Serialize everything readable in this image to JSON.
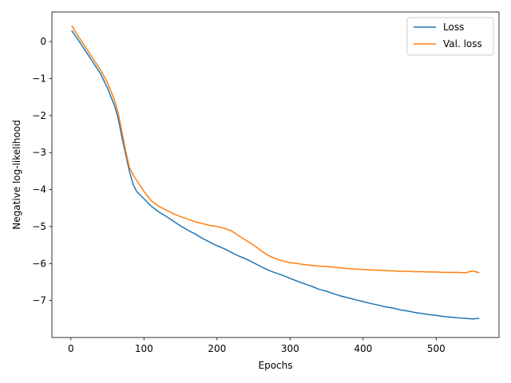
{
  "chart_data": {
    "type": "line",
    "title": "",
    "xlabel": "Epochs",
    "ylabel": "Negative log-likelihood",
    "xlim": [
      -26,
      586
    ],
    "ylim": [
      -8.0,
      0.8
    ],
    "xticks": [
      0,
      100,
      200,
      300,
      400,
      500
    ],
    "yticks": [
      0,
      -1,
      -2,
      -3,
      -4,
      -5,
      -6,
      -7
    ],
    "ytick_labels": [
      "0",
      "−1",
      "−2",
      "−3",
      "−4",
      "−5",
      "−6",
      "−7"
    ],
    "grid": false,
    "legend_position": "top-right",
    "series": [
      {
        "name": "Loss",
        "color": "#1f77b4",
        "x": [
          1,
          10,
          20,
          30,
          40,
          50,
          60,
          65,
          70,
          75,
          80,
          85,
          90,
          95,
          100,
          110,
          120,
          130,
          140,
          150,
          160,
          170,
          180,
          190,
          200,
          210,
          220,
          230,
          240,
          250,
          260,
          270,
          280,
          290,
          300,
          310,
          320,
          330,
          340,
          350,
          360,
          370,
          380,
          390,
          400,
          410,
          420,
          430,
          440,
          450,
          460,
          470,
          480,
          490,
          500,
          510,
          520,
          530,
          540,
          550,
          559
        ],
        "y": [
          0.3,
          0.05,
          -0.25,
          -0.55,
          -0.85,
          -1.25,
          -1.75,
          -2.1,
          -2.6,
          -3.05,
          -3.5,
          -3.85,
          -4.05,
          -4.15,
          -4.25,
          -4.45,
          -4.6,
          -4.72,
          -4.85,
          -4.98,
          -5.1,
          -5.2,
          -5.32,
          -5.42,
          -5.52,
          -5.6,
          -5.7,
          -5.8,
          -5.88,
          -5.98,
          -6.08,
          -6.18,
          -6.25,
          -6.32,
          -6.4,
          -6.48,
          -6.55,
          -6.62,
          -6.7,
          -6.75,
          -6.82,
          -6.88,
          -6.93,
          -6.98,
          -7.03,
          -7.08,
          -7.12,
          -7.17,
          -7.2,
          -7.25,
          -7.28,
          -7.32,
          -7.35,
          -7.38,
          -7.4,
          -7.43,
          -7.45,
          -7.47,
          -7.48,
          -7.5,
          -7.48
        ]
      },
      {
        "name": "Val. loss",
        "color": "#ff7f0e",
        "x": [
          1,
          10,
          20,
          30,
          40,
          50,
          60,
          65,
          70,
          75,
          80,
          85,
          90,
          95,
          100,
          110,
          120,
          130,
          140,
          150,
          160,
          170,
          180,
          190,
          200,
          210,
          220,
          230,
          240,
          250,
          260,
          270,
          280,
          290,
          300,
          310,
          320,
          330,
          340,
          350,
          360,
          370,
          380,
          390,
          400,
          410,
          420,
          430,
          440,
          450,
          460,
          470,
          480,
          490,
          500,
          510,
          520,
          530,
          540,
          550,
          559
        ],
        "y": [
          0.43,
          0.15,
          -0.15,
          -0.45,
          -0.75,
          -1.1,
          -1.6,
          -1.95,
          -2.45,
          -2.95,
          -3.4,
          -3.6,
          -3.75,
          -3.9,
          -4.05,
          -4.3,
          -4.45,
          -4.55,
          -4.65,
          -4.73,
          -4.8,
          -4.87,
          -4.92,
          -4.97,
          -5.0,
          -5.05,
          -5.12,
          -5.25,
          -5.38,
          -5.5,
          -5.65,
          -5.78,
          -5.87,
          -5.93,
          -5.98,
          -6.0,
          -6.03,
          -6.05,
          -6.07,
          -6.08,
          -6.1,
          -6.12,
          -6.14,
          -6.15,
          -6.16,
          -6.17,
          -6.18,
          -6.19,
          -6.2,
          -6.21,
          -6.21,
          -6.22,
          -6.22,
          -6.23,
          -6.23,
          -6.24,
          -6.24,
          -6.24,
          -6.25,
          -6.2,
          -6.25
        ]
      }
    ]
  }
}
